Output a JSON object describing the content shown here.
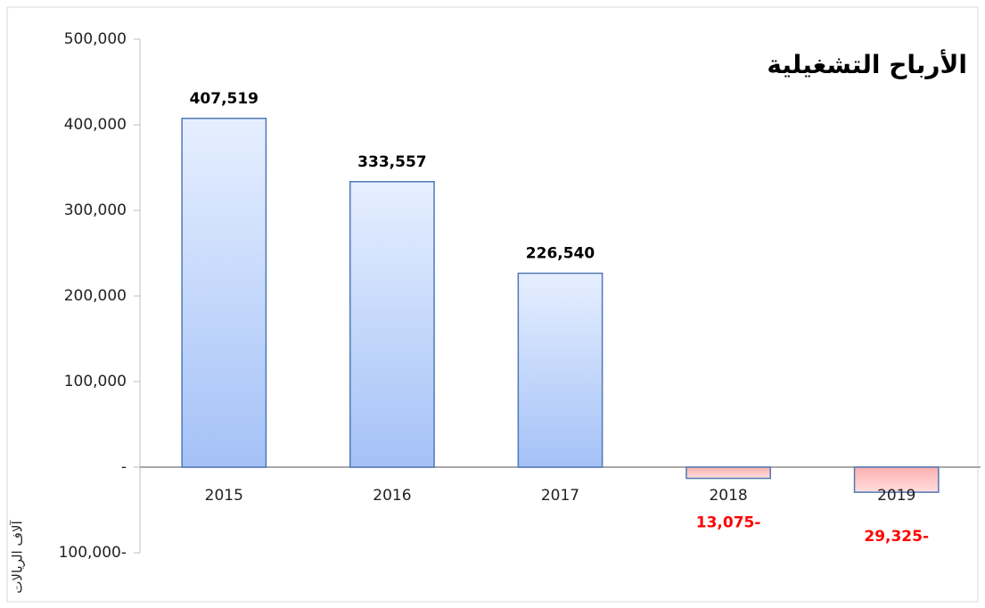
{
  "chart_data": {
    "type": "bar",
    "title": "الأرباح التشغيلية",
    "y_axis_label": "آلاف الريالات",
    "categories": [
      "2015",
      "2016",
      "2017",
      "2018",
      "2019"
    ],
    "values": [
      407519,
      333557,
      226540,
      -13075,
      -29325
    ],
    "value_labels": [
      "407,519",
      "333,557",
      "226,540",
      "13,075-",
      "29,325-"
    ],
    "colors": [
      "#a9c6fa",
      "#a9c6fa",
      "#a9c6fa",
      "#ffb3b3",
      "#ffb3b3"
    ],
    "label_colors": [
      "#000000",
      "#000000",
      "#000000",
      "#ff0000",
      "#ff0000"
    ],
    "ylim": [
      -100000,
      500000
    ],
    "yticks": [
      {
        "value": -100000,
        "label": "100,000-"
      },
      {
        "value": 0,
        "label": "-"
      },
      {
        "value": 100000,
        "label": "100,000"
      },
      {
        "value": 200000,
        "label": "200,000"
      },
      {
        "value": 300000,
        "label": "300,000"
      },
      {
        "value": 400000,
        "label": "400,000"
      },
      {
        "value": 500000,
        "label": "500,000"
      }
    ],
    "grid": false
  }
}
